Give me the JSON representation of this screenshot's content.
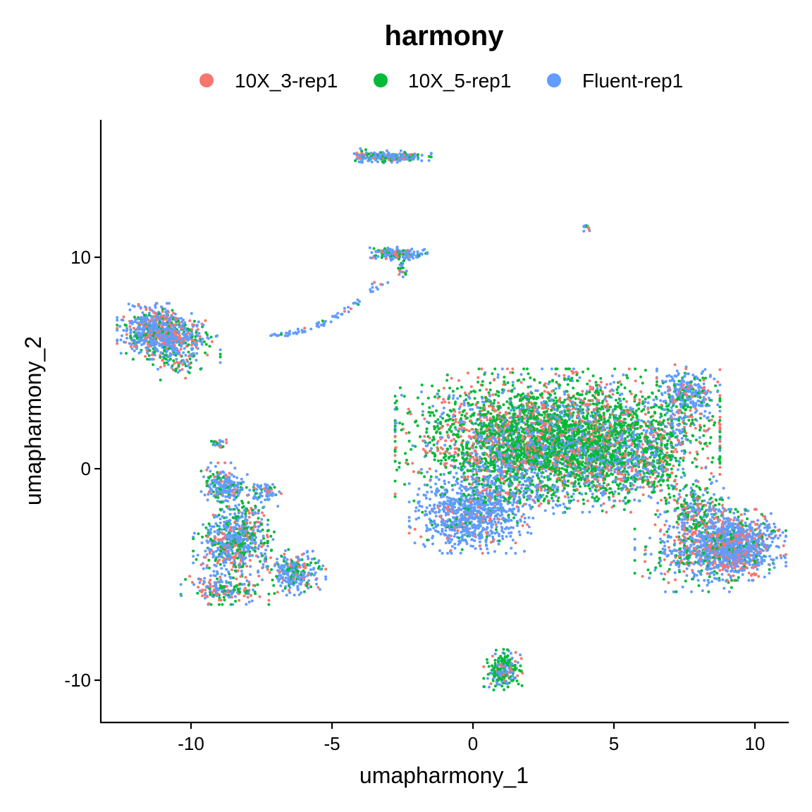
{
  "chart_data": {
    "type": "scatter",
    "title": "harmony",
    "xlabel": "umapharmony_1",
    "ylabel": "umapharmony_2",
    "xlim": [
      -13.2,
      11.2
    ],
    "ylim": [
      -12.0,
      16.5
    ],
    "xticks": [
      -10,
      -5,
      0,
      5,
      10
    ],
    "xtick_labels": [
      "-10",
      "-5",
      "0",
      "5",
      "10"
    ],
    "yticks": [
      -10,
      0,
      10
    ],
    "ytick_labels": [
      "-10",
      "0",
      "10"
    ],
    "grid": false,
    "legend_position": "top",
    "series": [
      {
        "name": "10X_3-rep1",
        "color": "#F8766D"
      },
      {
        "name": "10X_5-rep1",
        "color": "#00BA38"
      },
      {
        "name": "Fluent-rep1",
        "color": "#619CFF"
      }
    ],
    "clusters": [
      {
        "center": [
          3.0,
          1.6
        ],
        "spread": [
          2.4,
          1.3
        ],
        "count": 3600,
        "mix": [
          0.22,
          0.58,
          0.2
        ]
      },
      {
        "center": [
          1.5,
          0.6
        ],
        "spread": [
          1.3,
          0.8
        ],
        "count": 500,
        "mix": [
          0.25,
          0.4,
          0.35
        ]
      },
      {
        "center": [
          -0.1,
          -2.2
        ],
        "spread": [
          0.9,
          0.75
        ],
        "count": 800,
        "mix": [
          0.08,
          0.07,
          0.85
        ]
      },
      {
        "center": [
          1.2,
          -1.2
        ],
        "spread": [
          1.3,
          0.6
        ],
        "count": 250,
        "mix": [
          0.1,
          0.15,
          0.75
        ]
      },
      {
        "center": [
          4.5,
          0.1
        ],
        "spread": [
          1.0,
          0.9
        ],
        "count": 500,
        "mix": [
          0.2,
          0.45,
          0.35
        ]
      },
      {
        "center": [
          9.3,
          -3.6
        ],
        "spread": [
          0.75,
          0.7
        ],
        "count": 1100,
        "mix": [
          0.22,
          0.13,
          0.65
        ]
      },
      {
        "center": [
          7.9,
          -3.9
        ],
        "spread": [
          0.9,
          0.8
        ],
        "count": 400,
        "mix": [
          0.25,
          0.2,
          0.55
        ]
      },
      {
        "center": [
          7.8,
          -1.9
        ],
        "spread": [
          0.55,
          0.55
        ],
        "count": 220,
        "mix": [
          0.22,
          0.4,
          0.38
        ]
      },
      {
        "center": [
          6.6,
          0.3
        ],
        "spread": [
          0.55,
          0.8
        ],
        "count": 200,
        "mix": [
          0.2,
          0.45,
          0.35
        ]
      },
      {
        "center": [
          7.6,
          3.6
        ],
        "spread": [
          0.45,
          0.55
        ],
        "count": 280,
        "mix": [
          0.1,
          0.15,
          0.75
        ]
      },
      {
        "center": [
          7.3,
          2.3
        ],
        "spread": [
          0.25,
          0.6
        ],
        "count": 60,
        "mix": [
          0.2,
          0.4,
          0.4
        ]
      },
      {
        "center": [
          -11.3,
          6.5
        ],
        "spread": [
          0.55,
          0.55
        ],
        "count": 650,
        "mix": [
          0.2,
          0.15,
          0.65
        ]
      },
      {
        "center": [
          -10.4,
          6.1
        ],
        "spread": [
          0.6,
          0.45
        ],
        "count": 250,
        "mix": [
          0.25,
          0.2,
          0.55
        ]
      },
      {
        "center": [
          -10.5,
          5.0
        ],
        "spread": [
          0.45,
          0.35
        ],
        "count": 70,
        "mix": [
          0.3,
          0.4,
          0.3
        ]
      },
      {
        "center": [
          -8.6,
          -3.6
        ],
        "spread": [
          0.55,
          0.7
        ],
        "count": 500,
        "mix": [
          0.18,
          0.22,
          0.6
        ]
      },
      {
        "center": [
          -8.8,
          -0.8
        ],
        "spread": [
          0.35,
          0.45
        ],
        "count": 220,
        "mix": [
          0.15,
          0.2,
          0.65
        ]
      },
      {
        "center": [
          -7.4,
          -1.1
        ],
        "spread": [
          0.25,
          0.2
        ],
        "count": 60,
        "mix": [
          0.1,
          0.1,
          0.8
        ]
      },
      {
        "center": [
          -6.3,
          -4.9
        ],
        "spread": [
          0.45,
          0.45
        ],
        "count": 260,
        "mix": [
          0.2,
          0.2,
          0.6
        ]
      },
      {
        "center": [
          -8.8,
          -5.7
        ],
        "spread": [
          0.65,
          0.3
        ],
        "count": 200,
        "mix": [
          0.25,
          0.3,
          0.45
        ]
      },
      {
        "center": [
          -8.0,
          -2.7
        ],
        "spread": [
          0.45,
          0.8
        ],
        "count": 160,
        "mix": [
          0.2,
          0.4,
          0.4
        ]
      },
      {
        "center": [
          -9.0,
          1.2
        ],
        "spread": [
          0.15,
          0.15
        ],
        "count": 25,
        "mix": [
          0.2,
          0.3,
          0.5
        ]
      },
      {
        "center": [
          1.1,
          -9.5
        ],
        "spread": [
          0.3,
          0.4
        ],
        "count": 220,
        "mix": [
          0.1,
          0.55,
          0.35
        ]
      },
      {
        "center": [
          -2.8,
          14.75
        ],
        "spread": [
          0.55,
          0.12
        ],
        "count": 200,
        "mix": [
          0.15,
          0.25,
          0.6
        ]
      },
      {
        "center": [
          -3.9,
          14.8
        ],
        "spread": [
          0.15,
          0.15
        ],
        "count": 40,
        "mix": [
          0.2,
          0.4,
          0.4
        ]
      },
      {
        "center": [
          -2.7,
          10.15
        ],
        "spread": [
          0.45,
          0.14
        ],
        "count": 170,
        "mix": [
          0.1,
          0.2,
          0.7
        ]
      },
      {
        "center": [
          -2.5,
          9.5
        ],
        "spread": [
          0.1,
          0.25
        ],
        "count": 20,
        "mix": [
          0.2,
          0.3,
          0.5
        ]
      },
      {
        "center": [
          4.0,
          11.4
        ],
        "spread": [
          0.07,
          0.07
        ],
        "count": 14,
        "mix": [
          0.1,
          0.1,
          0.8
        ]
      }
    ],
    "bridge": {
      "from": [
        -7.2,
        6.3
      ],
      "to": [
        -3.2,
        8.9
      ],
      "count": 70,
      "mix": [
        0.05,
        0.1,
        0.85
      ]
    },
    "point_radius": 2.0
  }
}
